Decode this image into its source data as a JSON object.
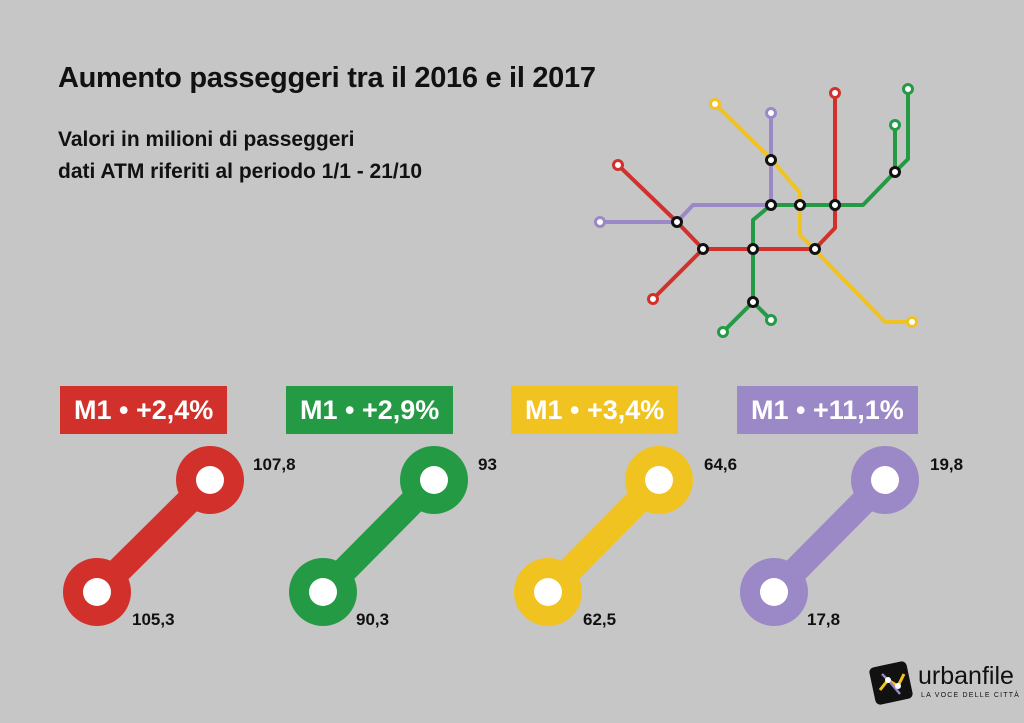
{
  "header": {
    "title": "Aumento passeggeri tra il 2016 e il 2017",
    "subtitle_line1": "Valori in milioni di passeggeri",
    "subtitle_line2": "dati ATM riferiti al periodo 1/1 - 21/10"
  },
  "colors": {
    "red": "#d2312b",
    "green": "#249a45",
    "yellow": "#f1c320",
    "purple": "#9b88c6",
    "background": "#c6c6c6"
  },
  "lines": [
    {
      "badge": "M1 • +2,4%",
      "value_2017": "107,8",
      "value_2016": "105,3",
      "color": "#d2312b"
    },
    {
      "badge": "M1 • +2,9%",
      "value_2017": "93",
      "value_2016": "90,3",
      "color": "#249a45"
    },
    {
      "badge": "M1 • +3,4%",
      "value_2017": "64,6",
      "value_2016": "62,5",
      "color": "#f1c320"
    },
    {
      "badge": "M1 • +11,1%",
      "value_2017": "19,8",
      "value_2016": "17,8",
      "color": "#9b88c6"
    }
  ],
  "brand": {
    "name": "urbanfile",
    "tagline": "LA VOCE DELLE CITTÀ"
  }
}
